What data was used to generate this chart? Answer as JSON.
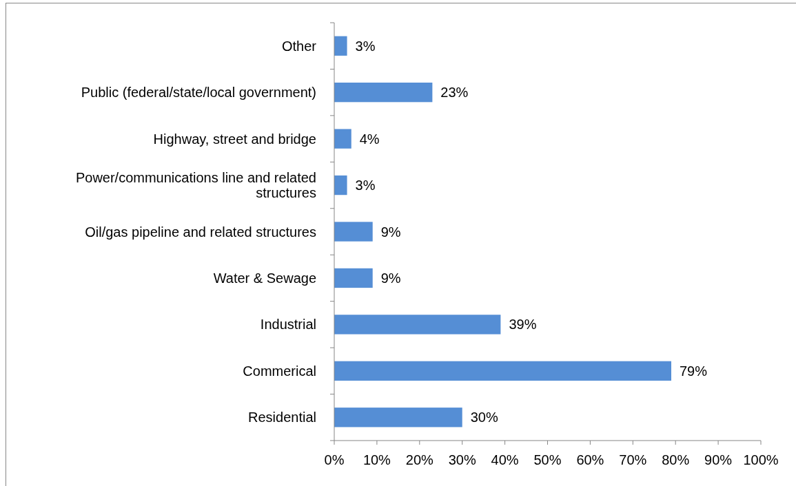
{
  "chart_data": {
    "type": "bar",
    "orientation": "horizontal",
    "categories": [
      "Other",
      "Public (federal/state/local government)",
      "Highway, street and bridge",
      "Power/communications line and related structures",
      "Oil/gas pipeline and related structures",
      "Water & Sewage",
      "Industrial",
      "Commerical",
      "Residential"
    ],
    "values": [
      3,
      23,
      4,
      3,
      9,
      9,
      39,
      79,
      30
    ],
    "value_labels": [
      "3%",
      "23%",
      "4%",
      "3%",
      "9%",
      "9%",
      "39%",
      "79%",
      "30%"
    ],
    "color": "#558ed5",
    "xlim": [
      0,
      100
    ],
    "xticks": [
      {
        "value": 0,
        "label": "0%"
      },
      {
        "value": 10,
        "label": "10%"
      },
      {
        "value": 20,
        "label": "20%"
      },
      {
        "value": 30,
        "label": "30%"
      },
      {
        "value": 40,
        "label": "40%"
      },
      {
        "value": 50,
        "label": "50%"
      },
      {
        "value": 60,
        "label": "60%"
      },
      {
        "value": 70,
        "label": "70%"
      },
      {
        "value": 80,
        "label": "80%"
      },
      {
        "value": 90,
        "label": "90%"
      },
      {
        "value": 100,
        "label": "100%"
      }
    ],
    "grid": false
  }
}
